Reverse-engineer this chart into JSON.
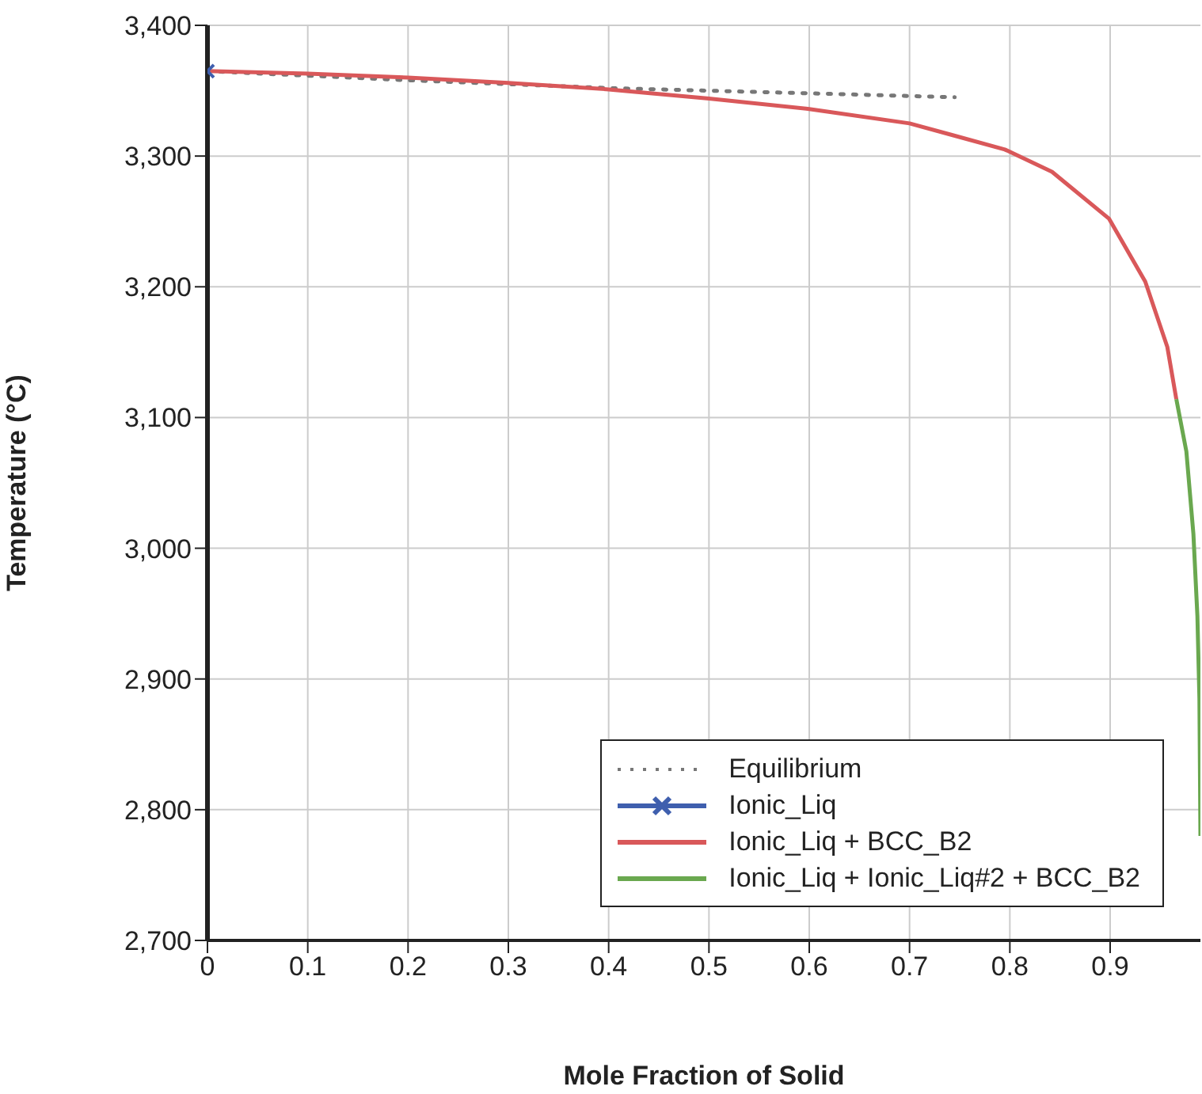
{
  "chart_data": {
    "type": "line",
    "xlabel": "Mole Fraction of Solid",
    "ylabel": "Temperature (°C)",
    "xlim": [
      0,
      0.99
    ],
    "xticks": [
      0,
      0.1,
      0.2,
      0.3,
      0.4,
      0.5,
      0.6,
      0.7,
      0.8,
      0.9
    ],
    "ylim": [
      2700,
      3400
    ],
    "yticks": [
      {
        "value": 2700,
        "label": "2,700"
      },
      {
        "value": 2800,
        "label": "2,800"
      },
      {
        "value": 2900,
        "label": "2,900"
      },
      {
        "value": 3000,
        "label": "3,000"
      },
      {
        "value": 3100,
        "label": "3,100"
      },
      {
        "value": 3200,
        "label": "3,200"
      },
      {
        "value": 3300,
        "label": "3,300"
      },
      {
        "value": 3400,
        "label": "3,400"
      }
    ],
    "grid": true,
    "legend": "bottom right",
    "series": [
      {
        "name": "Equilibrium",
        "color": "#777777",
        "line_style": "dotted",
        "marker": "none",
        "x": [
          0,
          0.2,
          0.4,
          0.6,
          0.745
        ],
        "values": [
          3365,
          3358,
          3352,
          3348,
          3345
        ]
      },
      {
        "name": "Ionic_Liq",
        "color": "#3f5fae",
        "line_style": "solid",
        "marker": "cross",
        "x": [
          0
        ],
        "values": [
          3365
        ]
      },
      {
        "name": "Ionic_Liq + BCC_B2",
        "color": "#d9585a",
        "line_style": "solid",
        "marker": "none",
        "x": [
          0,
          0.1,
          0.2,
          0.3,
          0.4,
          0.5,
          0.6,
          0.7,
          0.743,
          0.795,
          0.842,
          0.899,
          0.935,
          0.957,
          0.966
        ],
        "values": [
          3365,
          3363,
          3360,
          3356,
          3351,
          3344,
          3336,
          3325,
          3316,
          3305,
          3288,
          3252,
          3204,
          3154,
          3114
        ]
      },
      {
        "name": "Ionic_Liq + Ionic_Liq#2 + BCC_B2",
        "color": "#6aa84f",
        "line_style": "solid",
        "marker": "none",
        "x": [
          0.966,
          0.976,
          0.983,
          0.987,
          0.989,
          0.99
        ],
        "values": [
          3114,
          3074,
          3011,
          2948,
          2885,
          2780
        ]
      }
    ]
  }
}
